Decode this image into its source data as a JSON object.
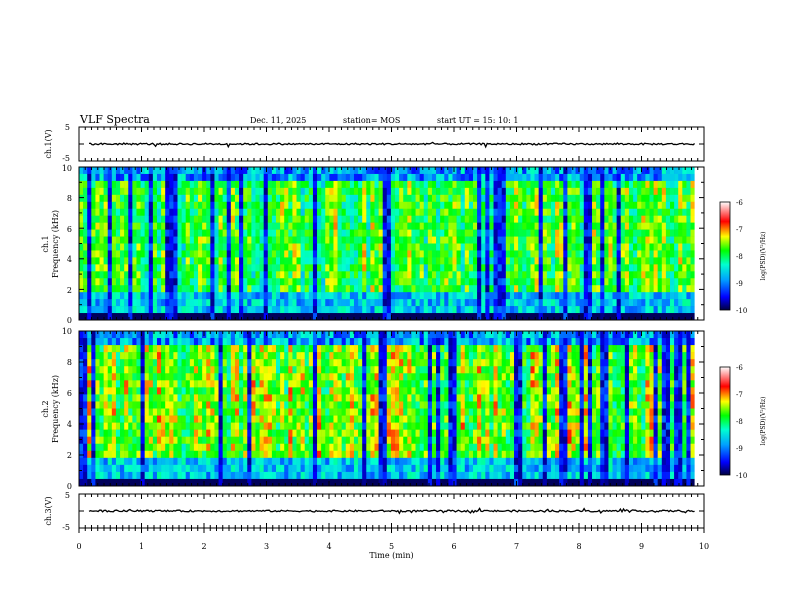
{
  "header": {
    "title": "VLF Spectra",
    "date": "Dec. 11, 2025",
    "station": "station= MOS",
    "start_ut": "start  UT =   15: 10: 1"
  },
  "chart_data": [
    {
      "type": "line",
      "name": "ch1-waveform",
      "ylabel": "ch.1(V)",
      "ylim": [
        -5,
        5
      ],
      "yticks": [
        "5",
        "-5"
      ],
      "trace_level": 0,
      "xlim": [
        0,
        10
      ],
      "data_end_min": 9.85
    },
    {
      "type": "heatmap",
      "name": "ch1-spectrogram",
      "ylabel_line1": "ch.1",
      "ylabel_line2": "Frequency (kHz)",
      "ylim": [
        0,
        10
      ],
      "yticks": [
        "0",
        "2",
        "4",
        "6",
        "8",
        "10"
      ],
      "xlim": [
        0,
        10
      ],
      "data_end_min": 9.85,
      "colorbar": {
        "label": "log(PSD)(V²/Hz)",
        "range": [
          -10,
          -6
        ],
        "ticks": [
          "-6",
          "-7",
          "-8",
          "-9",
          "-10"
        ]
      }
    },
    {
      "type": "heatmap",
      "name": "ch2-spectrogram",
      "ylabel_line1": "ch.2",
      "ylabel_line2": "Frequency (kHz)",
      "ylim": [
        0,
        10
      ],
      "yticks": [
        "0",
        "2",
        "4",
        "6",
        "8",
        "10"
      ],
      "xlim": [
        0,
        10
      ],
      "data_end_min": 9.85,
      "colorbar": {
        "label": "log(PSD)(V²/Hz)",
        "range": [
          -10,
          -6
        ],
        "ticks": [
          "-6",
          "-7",
          "-8",
          "-9",
          "-10"
        ]
      }
    },
    {
      "type": "line",
      "name": "ch3-waveform",
      "ylabel": "ch.3(V)",
      "ylim": [
        -5,
        5
      ],
      "yticks": [
        "5",
        "-5"
      ],
      "trace_level": 0,
      "xlim": [
        0,
        10
      ],
      "data_end_min": 9.85
    }
  ],
  "xaxis": {
    "label": "Time  (min)",
    "ticks": [
      "0",
      "1",
      "2",
      "3",
      "4",
      "5",
      "6",
      "7",
      "8",
      "9",
      "10"
    ]
  },
  "colors": {
    "scale": [
      "#000040",
      "#0000ff",
      "#00a0ff",
      "#00ffd0",
      "#00ff00",
      "#ffff00",
      "#ff0000",
      "#ffffff"
    ]
  }
}
